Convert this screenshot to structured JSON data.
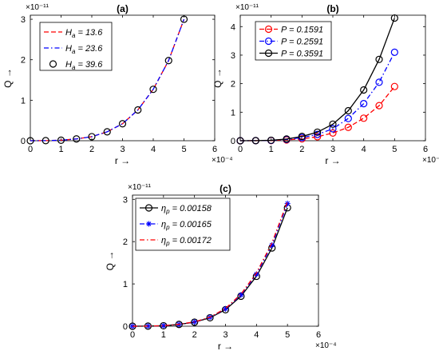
{
  "chart_data": [
    {
      "type": "line",
      "title": "(a)",
      "xlabel": "r →",
      "ylabel": "Q →",
      "xlim": [
        0,
        6
      ],
      "xticks": [
        "0",
        "1",
        "2",
        "3",
        "4",
        "5",
        "6"
      ],
      "x_exponent": "×10⁻⁴",
      "ylim": [
        0,
        3.1
      ],
      "yticks": [
        "0",
        "1",
        "2",
        "3"
      ],
      "y_exponent": "×10⁻¹¹",
      "x": [
        0,
        0.5,
        1,
        1.5,
        2,
        2.5,
        3,
        3.5,
        4,
        4.5,
        5
      ],
      "legend_position": "top-left",
      "series": [
        {
          "name": "H_a = 13.6",
          "name_main": "H",
          "name_sub": "a",
          "name_rest": " = 13.6",
          "color": "#ff0000",
          "style": "dashed",
          "marker": "none",
          "values": [
            0,
            0.003,
            0.012,
            0.045,
            0.1,
            0.22,
            0.42,
            0.76,
            1.27,
            1.98,
            3.0
          ]
        },
        {
          "name": "H_a = 23.6",
          "name_main": "H",
          "name_sub": "a",
          "name_rest": " = 23.6",
          "color": "#0000ff",
          "style": "dashdot",
          "marker": "none",
          "values": [
            0,
            0.003,
            0.012,
            0.045,
            0.1,
            0.22,
            0.42,
            0.76,
            1.27,
            1.98,
            3.0
          ]
        },
        {
          "name": "H_a = 39.6",
          "name_main": "H",
          "name_sub": "a",
          "name_rest": " = 39.6",
          "color": "#000000",
          "style": "none",
          "marker": "circle",
          "values": [
            0,
            0.003,
            0.012,
            0.045,
            0.1,
            0.22,
            0.42,
            0.76,
            1.27,
            1.98,
            3.0
          ]
        }
      ]
    },
    {
      "type": "line",
      "title": "(b)",
      "xlabel": "r →",
      "ylabel": "Q →",
      "xlim": [
        0,
        6
      ],
      "xticks": [
        "0",
        "1",
        "2",
        "3",
        "4",
        "5",
        "6"
      ],
      "x_exponent": "×10⁻⁴",
      "ylim": [
        0,
        4.4
      ],
      "yticks": [
        "0",
        "1",
        "2",
        "3",
        "4"
      ],
      "y_exponent": "×10⁻¹¹",
      "x": [
        0,
        0.5,
        1,
        1.5,
        2,
        2.5,
        3,
        3.5,
        4,
        4.5,
        5
      ],
      "legend_position": "top-left",
      "series": [
        {
          "name": "P = 0.1591",
          "name_main": "P = 0.1591",
          "name_sub": "",
          "name_rest": "",
          "color": "#ff0000",
          "style": "dashed",
          "marker": "circle",
          "values": [
            0,
            0.002,
            0.008,
            0.028,
            0.065,
            0.14,
            0.27,
            0.47,
            0.79,
            1.23,
            1.9
          ]
        },
        {
          "name": "P = 0.2591",
          "name_main": "P = 0.2591",
          "name_sub": "",
          "name_rest": "",
          "color": "#0000ff",
          "style": "dashdot",
          "marker": "circle",
          "values": [
            0,
            0.003,
            0.012,
            0.045,
            0.11,
            0.22,
            0.42,
            0.78,
            1.3,
            2.05,
            3.1
          ]
        },
        {
          "name": "P = 0.3591",
          "name_main": "P = 0.3591",
          "name_sub": "",
          "name_rest": "",
          "color": "#000000",
          "style": "solid",
          "marker": "circle",
          "values": [
            0,
            0.004,
            0.016,
            0.06,
            0.15,
            0.3,
            0.58,
            1.05,
            1.78,
            2.85,
            4.3
          ]
        }
      ]
    },
    {
      "type": "line",
      "title": "(c)",
      "xlabel": "r →",
      "ylabel": "Q →",
      "xlim": [
        0,
        6
      ],
      "xticks": [
        "0",
        "1",
        "2",
        "3",
        "4",
        "5",
        "6"
      ],
      "x_exponent": "×10⁻⁴",
      "ylim": [
        0,
        3.1
      ],
      "yticks": [
        "0",
        "1",
        "2",
        "3"
      ],
      "y_exponent": "×10⁻¹¹",
      "x": [
        0,
        0.5,
        1,
        1.5,
        2,
        2.5,
        3,
        3.5,
        4,
        4.5,
        5
      ],
      "legend_position": "top-left",
      "series": [
        {
          "name": "η_p = 0.00158",
          "name_main": "η",
          "name_sub": "p",
          "name_rest": " = 0.00158",
          "color": "#000000",
          "style": "solid",
          "marker": "circle",
          "values": [
            0,
            0.003,
            0.011,
            0.042,
            0.095,
            0.2,
            0.39,
            0.71,
            1.18,
            1.85,
            2.8
          ]
        },
        {
          "name": "η_p = 0.00165",
          "name_main": "η",
          "name_sub": "p",
          "name_rest": " = 0.00165",
          "color": "#0000ff",
          "style": "dashdot",
          "marker": "star",
          "values": [
            0,
            0.003,
            0.012,
            0.045,
            0.1,
            0.21,
            0.41,
            0.74,
            1.23,
            1.92,
            2.9
          ]
        },
        {
          "name": "η_p = 0.00172",
          "name_main": "η",
          "name_sub": "p",
          "name_rest": " = 0.00172",
          "color": "#ff0000",
          "style": "dashdot",
          "marker": "none",
          "values": [
            0,
            0.003,
            0.012,
            0.046,
            0.102,
            0.215,
            0.42,
            0.76,
            1.26,
            1.97,
            2.95
          ]
        }
      ]
    }
  ]
}
